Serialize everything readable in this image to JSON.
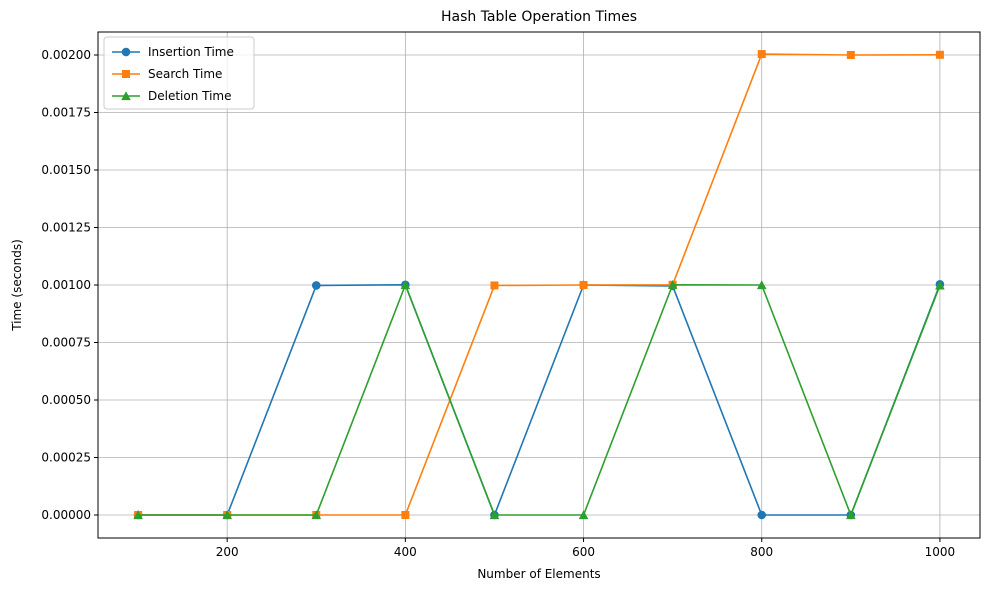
{
  "chart_data": {
    "type": "line",
    "title": "Hash Table Operation Times",
    "xlabel": "Number of Elements",
    "ylabel": "Time (seconds)",
    "xlim": [
      55,
      1045
    ],
    "ylim": [
      -0.0001,
      0.0021
    ],
    "grid": true,
    "legend_position": "top-left",
    "x_ticks": [
      200,
      400,
      600,
      800,
      1000
    ],
    "x_tick_labels": [
      "200",
      "400",
      "600",
      "800",
      "1000"
    ],
    "y_ticks": [
      0,
      0.00025,
      0.0005,
      0.00075,
      0.001,
      0.00125,
      0.0015,
      0.00175,
      0.002
    ],
    "y_tick_labels": [
      "0.00000",
      "0.00025",
      "0.00050",
      "0.00075",
      "0.00100",
      "0.00125",
      "0.00150",
      "0.00175",
      "0.00200"
    ],
    "x": [
      100,
      200,
      300,
      400,
      500,
      600,
      700,
      800,
      900,
      1000
    ],
    "series": [
      {
        "name": "Insertion Time",
        "color": "#1f77b4",
        "marker": "circle",
        "values": [
          0,
          0,
          0.000998,
          0.001001,
          0,
          0.001,
          0.000996,
          0,
          0,
          0.001003
        ]
      },
      {
        "name": "Search Time",
        "color": "#ff7f0e",
        "marker": "square",
        "values": [
          0,
          0,
          0,
          0,
          0.000998,
          0.001,
          0.001001,
          0.002004,
          0.002,
          0.002001
        ]
      },
      {
        "name": "Deletion Time",
        "color": "#2ca02c",
        "marker": "triangle",
        "values": [
          0,
          0,
          0,
          0.001,
          0,
          0,
          0.001001,
          0.001,
          0,
          0.000998
        ]
      }
    ]
  }
}
